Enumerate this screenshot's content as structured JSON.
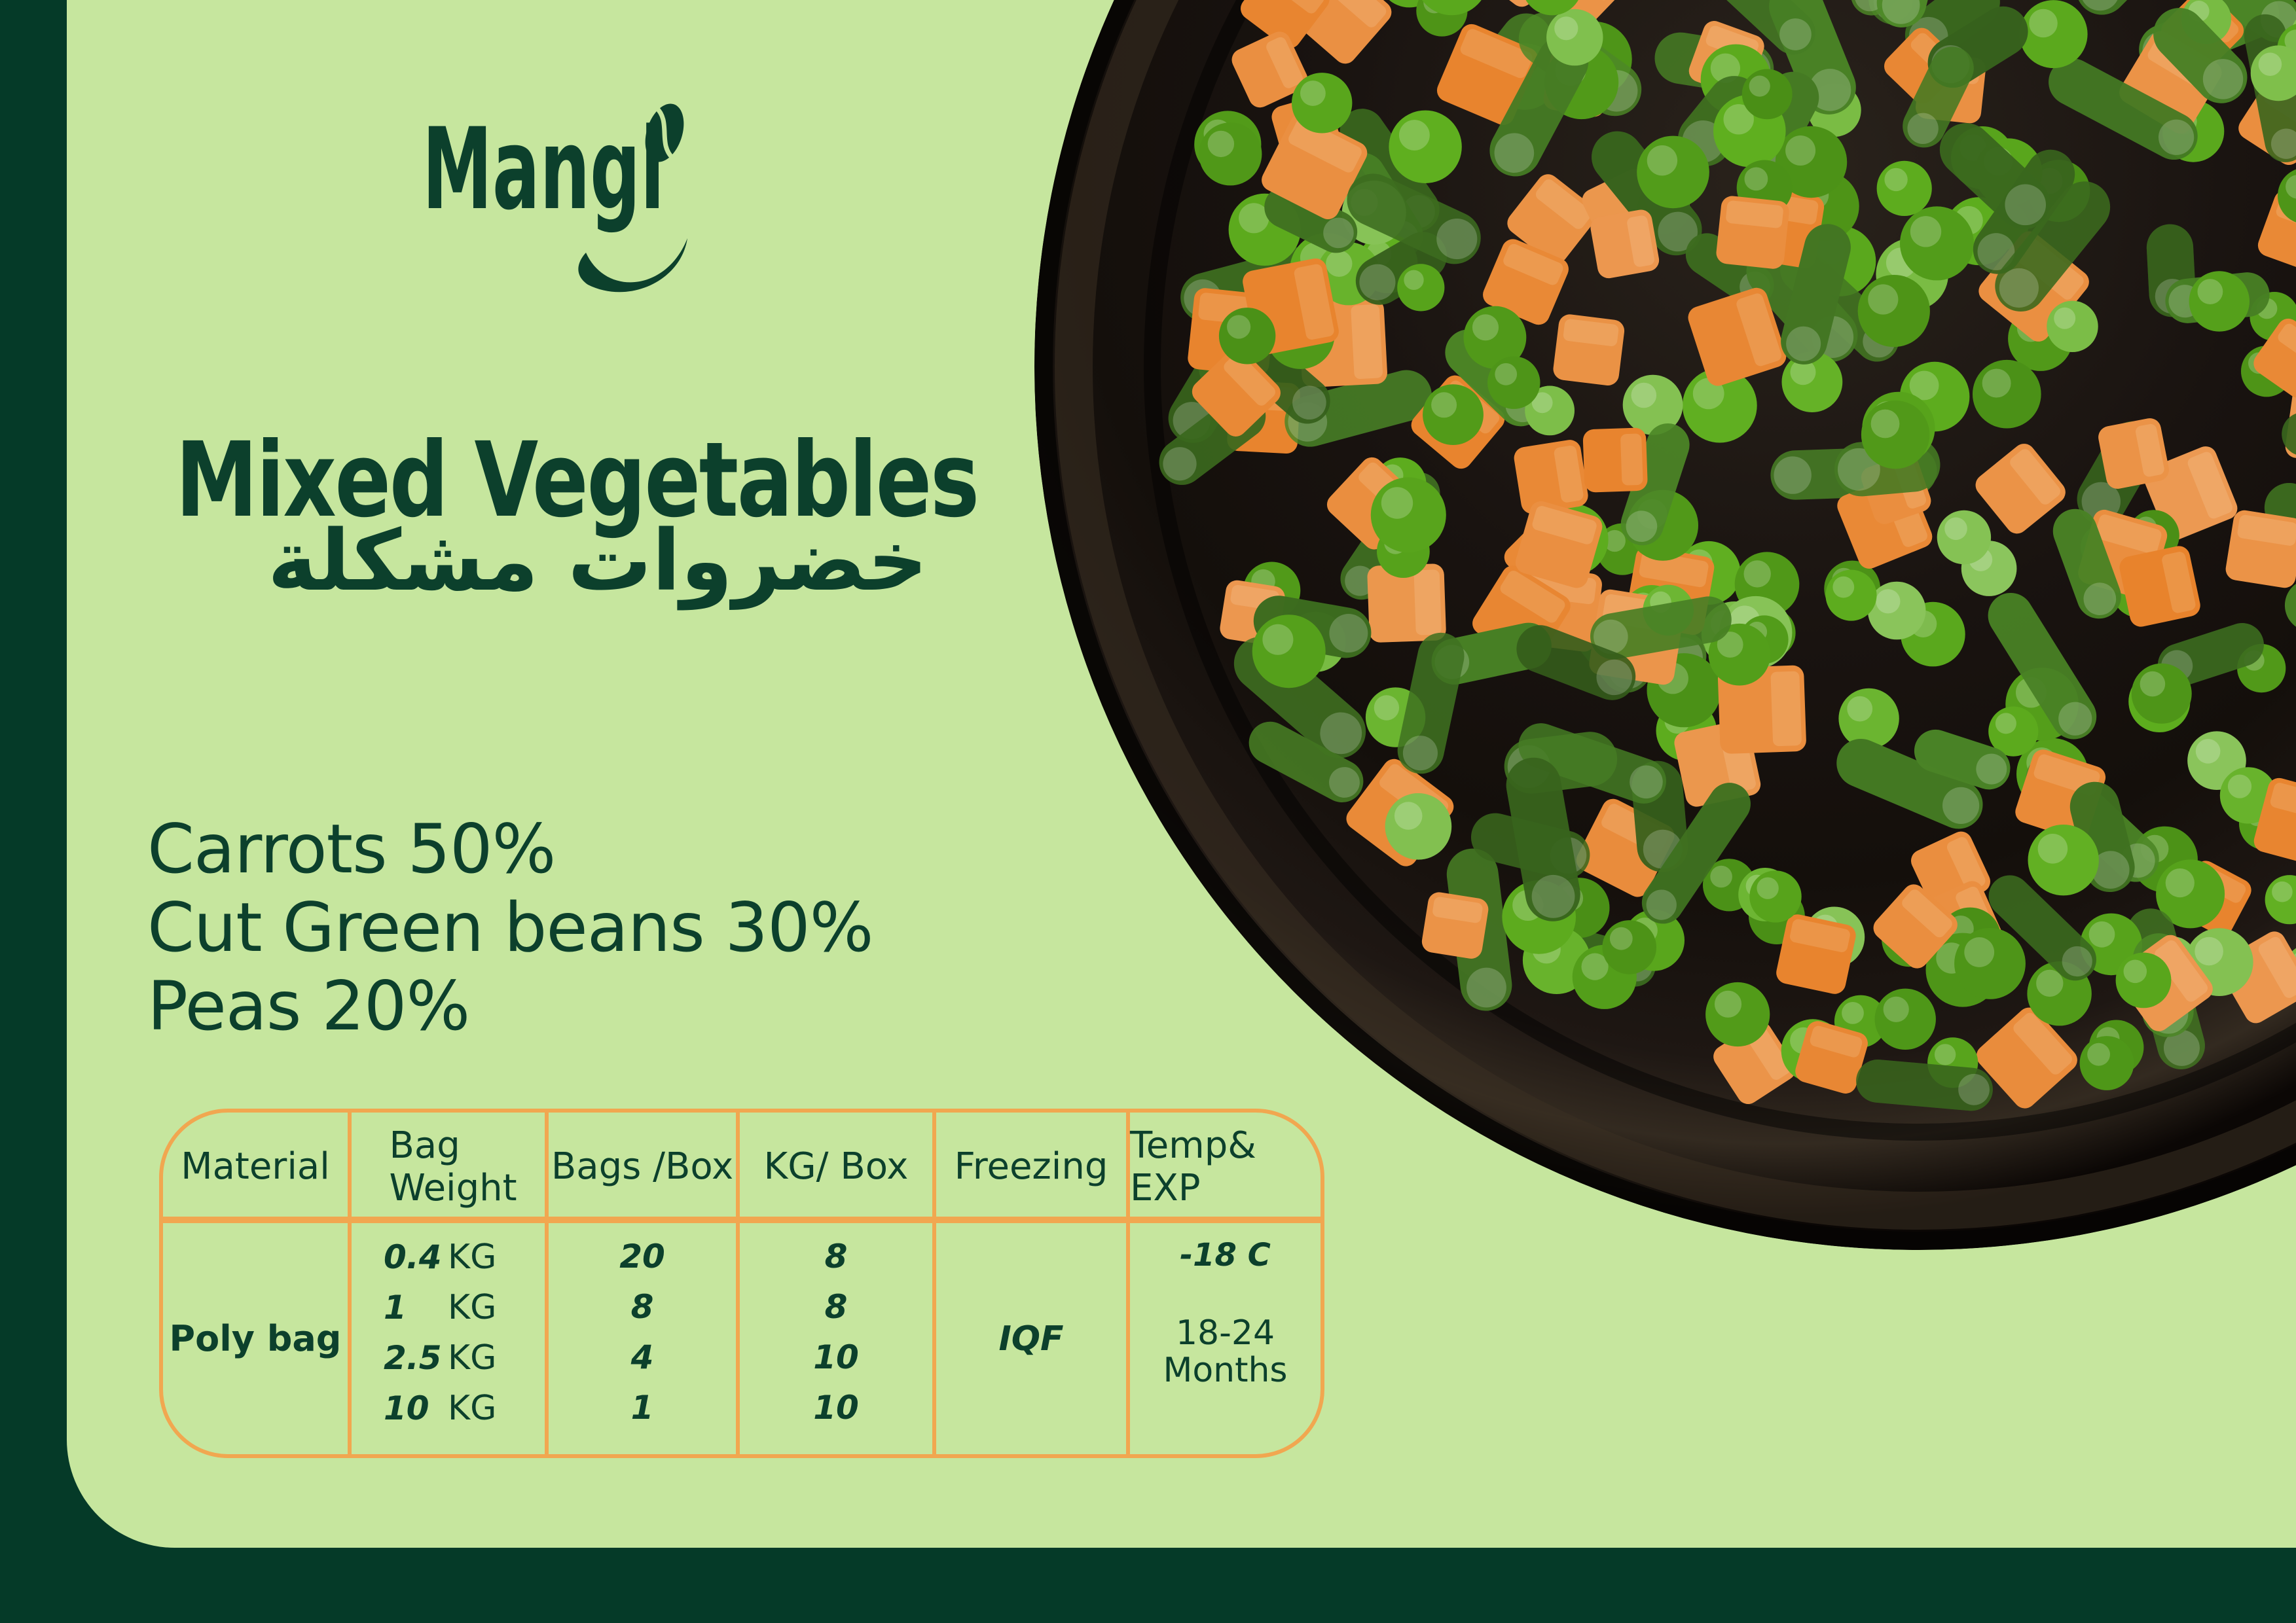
{
  "brand": {
    "logo_text": "Mangi"
  },
  "product": {
    "title_en": "Mixed Vegetables",
    "title_ar": "خضروات مشكلة",
    "composition": [
      "Carrots 50%",
      "Cut Green beans 30%",
      "Peas 20%"
    ]
  },
  "spec_table": {
    "headers": [
      "Material",
      "Bag Weight",
      "Bags /Box",
      "KG/ Box",
      "Freezing",
      "Temp& EXP"
    ],
    "material": "Poly bag",
    "rows": [
      {
        "weight": "0.4",
        "unit": "KG",
        "bags_per_box": "20",
        "kg_per_box": "8"
      },
      {
        "weight": "1",
        "unit": "KG",
        "bags_per_box": "8",
        "kg_per_box": "8"
      },
      {
        "weight": "2.5",
        "unit": "KG",
        "bags_per_box": "4",
        "kg_per_box": "10"
      },
      {
        "weight": "10",
        "unit": "KG",
        "bags_per_box": "1",
        "kg_per_box": "10"
      }
    ],
    "freezing": "IQF",
    "temperature": "-18 C",
    "shelf_life_line1": "18-24",
    "shelf_life_line2": "Months"
  },
  "photo": {
    "description": "Frozen mixed vegetables (peas, carrot cubes, cut green beans) piled on a round black plate",
    "plate_color": "#17110E",
    "rim_color": "#38291C",
    "pea_color": "#5FAF1F",
    "carrot_color": "#E8832C",
    "bean_color": "#4E8A28"
  },
  "colors": {
    "frame_green": "#053A28",
    "panel_green": "#C6E69E",
    "ink_green": "#0C402C",
    "accent_orange": "#F1A750"
  }
}
